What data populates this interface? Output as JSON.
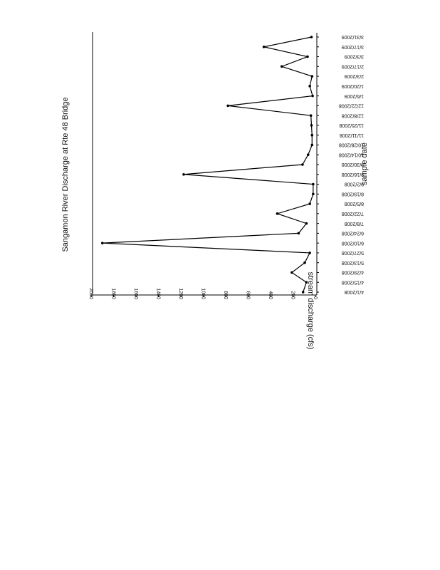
{
  "chart_data": {
    "type": "line",
    "title": "Sangamon River Discharge at Rte 48 Bridge",
    "x_label": "sample date",
    "y_label": "stream discharge (cfs)",
    "categories": [
      "4/1/2008",
      "4/15/2008",
      "4/29/2008",
      "5/13/2008",
      "5/27/2008",
      "6/10/2008",
      "6/24/2008",
      "7/8/2008",
      "7/22/2008",
      "8/5/2008",
      "8/19/2008",
      "9/2/2008",
      "9/16/2008",
      "9/30/2008",
      "10/14/2008",
      "10/28/2008",
      "11/11/2008",
      "11/25/2008",
      "12/8/2008",
      "12/22/2008",
      "1/6/2009",
      "1/20/2009",
      "2/3/2009",
      "2/17/2009",
      "3/3/2009",
      "3/17/2009",
      "3/31/2009"
    ],
    "values": [
      110,
      80,
      210,
      95,
      50,
      1900,
      150,
      80,
      340,
      50,
      20,
      20,
      1175,
      115,
      65,
      30,
      30,
      35,
      40,
      780,
      25,
      50,
      30,
      300,
      70,
      460,
      35
    ],
    "color": "#000000",
    "ylim": [
      0,
      2000
    ],
    "yticks": [
      0,
      200,
      400,
      600,
      800,
      1000,
      1200,
      1400,
      1600,
      1800,
      2000
    ]
  }
}
